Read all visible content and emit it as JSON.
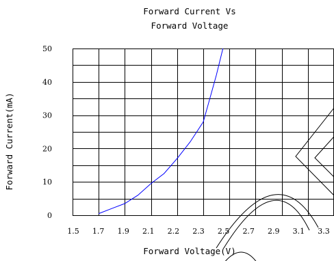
{
  "chart_data": {
    "type": "line",
    "title_lines": [
      "Forward Current Vs",
      "Forward Voltage"
    ],
    "xlabel": "Forward Voltage(V)",
    "ylabel": "Forward Current(mA)",
    "xlim": [
      1.5,
      3.3
    ],
    "ylim": [
      0,
      50
    ],
    "x_ticks": [
      1.5,
      1.7,
      1.9,
      2.1,
      2.2,
      2.3,
      2.5,
      2.7,
      2.9,
      3.1,
      3.3
    ],
    "x_tick_labels": [
      "1.5",
      "1.7",
      "1.9",
      "2.1",
      "2.2",
      "2.3",
      "2.5",
      "2.7",
      "2.9",
      "3.1",
      "3.3"
    ],
    "y_ticks": [
      0,
      10,
      20,
      30,
      40,
      50
    ],
    "y_tick_labels": [
      "0",
      "10",
      "20",
      "30",
      "40",
      "50"
    ],
    "grid": true,
    "series": [
      {
        "color": "#0000ff",
        "points": [
          [
            1.7,
            0.5
          ],
          [
            1.8,
            2
          ],
          [
            1.9,
            3.5
          ],
          [
            2.0,
            6
          ],
          [
            2.1,
            9.5
          ],
          [
            2.15,
            12.5
          ],
          [
            2.2,
            17
          ],
          [
            2.25,
            22
          ],
          [
            2.3,
            28
          ],
          [
            2.35,
            35
          ],
          [
            2.4,
            42
          ],
          [
            2.45,
            50
          ]
        ]
      }
    ]
  }
}
